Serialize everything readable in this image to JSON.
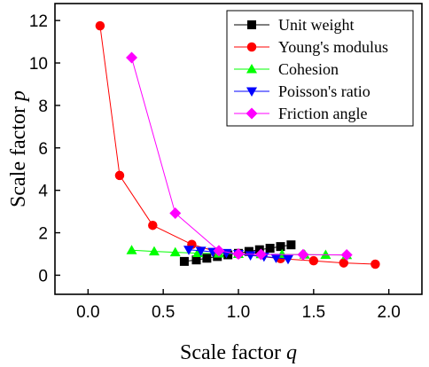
{
  "chart_data": {
    "type": "scatter",
    "xlabel_main": "Scale factor ",
    "xlabel_var": "q",
    "ylabel_main": "Scale factor ",
    "ylabel_var": "p",
    "xlim": [
      -0.22,
      2.22
    ],
    "ylim": [
      -0.9,
      12.8
    ],
    "xticks": [
      0.0,
      0.5,
      1.0,
      1.5,
      2.0
    ],
    "xtick_labels": [
      "0.0",
      "0.5",
      "1.0",
      "1.5",
      "2.0"
    ],
    "yticks": [
      0,
      2,
      4,
      6,
      8,
      10,
      12
    ],
    "ytick_labels": [
      "0",
      "2",
      "4",
      "6",
      "8",
      "10",
      "12"
    ],
    "grid": false,
    "legend_position": "top-right",
    "series": [
      {
        "name": "Unit weight",
        "marker": "square",
        "color": "#000000",
        "points": [
          [
            0.64,
            0.65
          ],
          [
            0.72,
            0.72
          ],
          [
            0.79,
            0.8
          ],
          [
            0.86,
            0.88
          ],
          [
            0.93,
            0.96
          ],
          [
            1.0,
            1.03
          ],
          [
            1.07,
            1.12
          ],
          [
            1.14,
            1.2
          ],
          [
            1.21,
            1.27
          ],
          [
            1.28,
            1.35
          ],
          [
            1.35,
            1.43
          ]
        ]
      },
      {
        "name": "Young's modulus",
        "marker": "circle",
        "color": "#ff0000",
        "points": [
          [
            0.08,
            11.75
          ],
          [
            0.21,
            4.7
          ],
          [
            0.43,
            2.35
          ],
          [
            0.69,
            1.45
          ],
          [
            0.86,
            1.1
          ],
          [
            1.0,
            1.0
          ],
          [
            1.28,
            0.78
          ],
          [
            1.5,
            0.68
          ],
          [
            1.7,
            0.58
          ],
          [
            1.91,
            0.52
          ]
        ]
      },
      {
        "name": "Cohesion",
        "marker": "triangle-up",
        "color": "#00ff00",
        "points": [
          [
            0.29,
            1.18
          ],
          [
            0.44,
            1.12
          ],
          [
            0.58,
            1.08
          ],
          [
            0.73,
            1.04
          ],
          [
            0.87,
            1.02
          ],
          [
            1.0,
            1.0
          ],
          [
            1.15,
            0.99
          ],
          [
            1.29,
            0.98
          ],
          [
            1.44,
            0.97
          ],
          [
            1.58,
            0.96
          ],
          [
            1.72,
            0.95
          ]
        ]
      },
      {
        "name": "Poisson's ratio",
        "marker": "triangle-down",
        "color": "#0000ff",
        "points": [
          [
            0.67,
            1.2
          ],
          [
            0.75,
            1.15
          ],
          [
            0.83,
            1.1
          ],
          [
            0.92,
            1.05
          ],
          [
            1.0,
            1.0
          ],
          [
            1.08,
            0.94
          ],
          [
            1.17,
            0.88
          ],
          [
            1.25,
            0.82
          ],
          [
            1.33,
            0.76
          ]
        ]
      },
      {
        "name": "Friction angle",
        "marker": "diamond",
        "color": "#ff00ff",
        "points": [
          [
            0.29,
            10.25
          ],
          [
            0.58,
            2.92
          ],
          [
            0.87,
            1.15
          ],
          [
            1.0,
            1.0
          ],
          [
            1.15,
            0.98
          ],
          [
            1.43,
            0.97
          ],
          [
            1.72,
            0.96
          ]
        ]
      }
    ]
  }
}
